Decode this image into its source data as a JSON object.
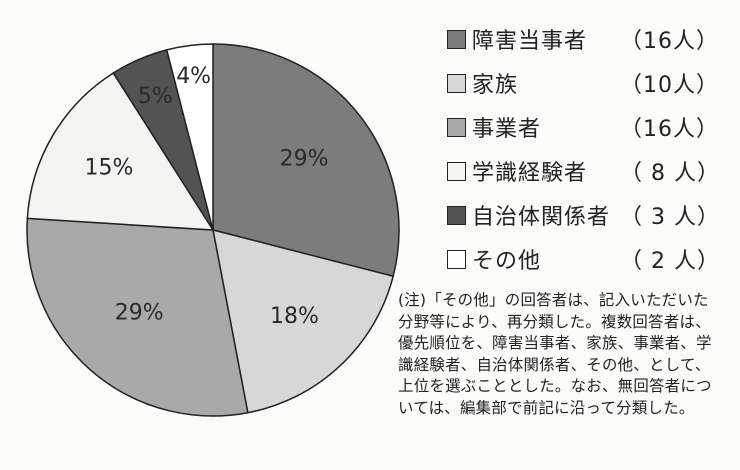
{
  "chart_data": {
    "type": "pie",
    "slices": [
      {
        "label": "障害当事者",
        "count": "（16人）",
        "percent": 29,
        "percent_label": "29%",
        "color": "#7c7c7c"
      },
      {
        "label": "家族",
        "count": "（10人）",
        "percent": 18,
        "percent_label": "18%",
        "color": "#d7d7d7"
      },
      {
        "label": "事業者",
        "count": "（16人）",
        "percent": 29,
        "percent_label": "29%",
        "color": "#a9a9a9"
      },
      {
        "label": "学識経験者",
        "count": "（ 8 人）",
        "percent": 15,
        "percent_label": "15%",
        "color": "#f4f4f3"
      },
      {
        "label": "自治体関係者",
        "count": "（ 3 人）",
        "percent": 5,
        "percent_label": "5%",
        "color": "#535353"
      },
      {
        "label": "その他",
        "count": "（ 2 人）",
        "percent": 4,
        "percent_label": "4%",
        "color": "#ffffff"
      }
    ],
    "start": "12 o'clock",
    "direction": "clockwise",
    "legend_position": "right"
  },
  "note": "(注)「その他」の回答者は、記入いただいた分野等により、再分類した。複数回答者は、優先順位を、障害当事者、家族、事業者、学識経験者、自治体関係者、その他、として、上位を選ぶこととした。なお、無回答者については、編集部で前記に沿って分類した。",
  "colors": {
    "outline": "#222222",
    "background": "#fbfbfa"
  }
}
